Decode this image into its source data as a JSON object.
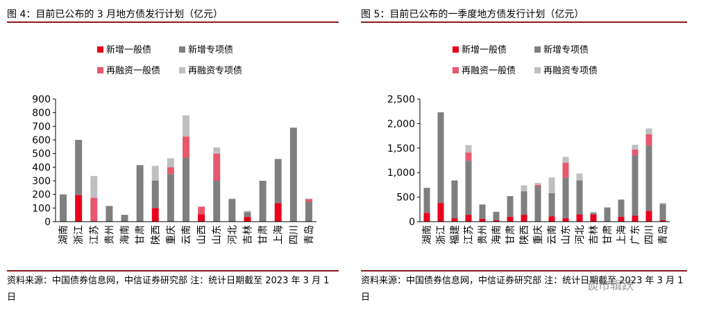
{
  "colors": {
    "new_general": "#e8001c",
    "new_special": "#7f7f7f",
    "refi_general": "#e8586d",
    "refi_special": "#bfbfbf",
    "rule": "#8b1a1a"
  },
  "chart_data": [
    {
      "type": "bar",
      "stacked": true,
      "title": "图 4：目前已公布的 3 月地方债发行计划（亿元）",
      "ylim": [
        0,
        900
      ],
      "yticks": [
        "0",
        "100",
        "200",
        "300",
        "400",
        "500",
        "600",
        "700",
        "800",
        "900"
      ],
      "ytick_values": [
        0,
        100,
        200,
        300,
        400,
        500,
        600,
        700,
        800,
        900
      ],
      "legend": [
        "新增一般债",
        "新增专项债",
        "再融资一般债",
        "再融资专项债"
      ],
      "legend_placement": "top",
      "categories": [
        "湖南",
        "浙江",
        "江苏",
        "贵州",
        "海南",
        "甘肃",
        "陕西",
        "重庆",
        "云南",
        "山西",
        "山东",
        "河北",
        "吉林",
        "甘肃",
        "上海",
        "四川",
        "青岛"
      ],
      "series": [
        {
          "name": "新增一般债",
          "values": [
            0,
            195,
            0,
            0,
            0,
            0,
            100,
            0,
            0,
            55,
            0,
            0,
            35,
            0,
            135,
            0,
            0
          ]
        },
        {
          "name": "新增专项债",
          "values": [
            200,
            405,
            0,
            115,
            50,
            415,
            200,
            350,
            470,
            0,
            300,
            165,
            35,
            300,
            325,
            690,
            145
          ]
        },
        {
          "name": "再融资一般债",
          "values": [
            0,
            0,
            175,
            0,
            0,
            0,
            0,
            50,
            155,
            55,
            200,
            0,
            0,
            0,
            0,
            0,
            20
          ]
        },
        {
          "name": "再融资专项债",
          "values": [
            0,
            0,
            160,
            0,
            0,
            0,
            110,
            65,
            155,
            0,
            45,
            5,
            10,
            0,
            0,
            0,
            5
          ]
        }
      ],
      "source": "资料来源：中国债券信息网，中信证券研究部  注：统计日期截至 2023 年 3 月 1 日"
    },
    {
      "type": "bar",
      "stacked": true,
      "title": "图 5：目前已公布的一季度地方债发行计划（亿元）",
      "ylim": [
        0,
        2500
      ],
      "yticks": [
        "0",
        "500",
        "1,000",
        "1,500",
        "2,000",
        "2,500"
      ],
      "ytick_values": [
        0,
        500,
        1000,
        1500,
        2000,
        2500
      ],
      "legend": [
        "新增一般债",
        "新增专项债",
        "再融资一般债",
        "再融资专项债"
      ],
      "legend_placement": "top",
      "categories": [
        "湖南",
        "浙江",
        "福建",
        "江苏",
        "贵州",
        "海南",
        "甘肃",
        "陕西",
        "重庆",
        "云南",
        "山东",
        "河北",
        "吉林",
        "甘肃",
        "上海",
        "广东",
        "四川",
        "青岛"
      ],
      "series": [
        {
          "name": "新增一般债",
          "values": [
            180,
            380,
            70,
            140,
            60,
            30,
            100,
            140,
            0,
            110,
            70,
            150,
            150,
            0,
            100,
            120,
            220,
            30
          ]
        },
        {
          "name": "新增专项债",
          "values": [
            510,
            1850,
            770,
            1100,
            290,
            170,
            420,
            480,
            720,
            470,
            830,
            690,
            30,
            290,
            350,
            1230,
            1330,
            330
          ]
        },
        {
          "name": "再融资一般债",
          "values": [
            0,
            0,
            0,
            170,
            0,
            0,
            0,
            0,
            30,
            0,
            300,
            0,
            0,
            0,
            0,
            120,
            230,
            0
          ]
        },
        {
          "name": "再融资专项债",
          "values": [
            0,
            0,
            0,
            150,
            0,
            0,
            0,
            120,
            40,
            320,
            120,
            140,
            20,
            0,
            0,
            100,
            120,
            20
          ]
        }
      ],
      "source": "资料来源：中国债券信息网，中信证券研究部  注：统计日期截至 2023 年 3 月 1 日",
      "watermark": "谈市辑跃"
    }
  ]
}
